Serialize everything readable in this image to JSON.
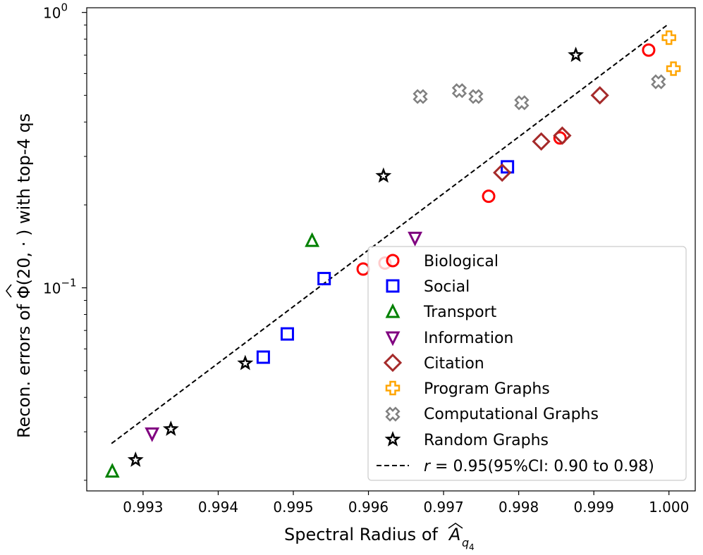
{
  "chart_data": {
    "type": "scatter",
    "xlabel": "Spectral Radius of Â_{q4}",
    "xlabel_main": "Spectral Radius of ",
    "xlabel_symbol": "A",
    "xlabel_sub": "q",
    "xlabel_subsub": "4",
    "ylabel": "Recon. errors of Φ̂(20, ·) with top-4 qs",
    "ylabel_before": "Recon. errors of ",
    "ylabel_symbol": "Φ",
    "ylabel_after": "(20, · ) with top-4 qs",
    "yscale": "log",
    "xlim": [
      0.99225,
      1.00035
    ],
    "ylim": [
      0.0183,
      1.04
    ],
    "x_ticks": [
      0.993,
      0.994,
      0.995,
      0.996,
      0.997,
      0.998,
      0.999,
      1.0
    ],
    "x_tick_labels": [
      "0.993",
      "0.994",
      "0.995",
      "0.996",
      "0.997",
      "0.998",
      "0.999",
      "1.000"
    ],
    "y_major_ticks": [
      {
        "value": 0.1,
        "base": "10",
        "exp": "−1"
      },
      {
        "value": 1.0,
        "base": "10",
        "exp": "0"
      }
    ],
    "y_minor_ticks": [
      0.02,
      0.03,
      0.04,
      0.05,
      0.06,
      0.07,
      0.08,
      0.09,
      0.2,
      0.3,
      0.4,
      0.5,
      0.6,
      0.7,
      0.8,
      0.9
    ],
    "series": [
      {
        "name": "Biological",
        "marker": "circle",
        "color": "#ff0000",
        "points": [
          [
            0.99593,
            0.117
          ],
          [
            0.99622,
            0.123
          ],
          [
            0.9976,
            0.215
          ],
          [
            0.99855,
            0.35
          ],
          [
            0.99973,
            0.73
          ]
        ]
      },
      {
        "name": "Social",
        "marker": "square",
        "color": "#0000ff",
        "points": [
          [
            0.9946,
            0.056
          ],
          [
            0.99492,
            0.068
          ],
          [
            0.99541,
            0.108
          ],
          [
            0.99785,
            0.275
          ]
        ]
      },
      {
        "name": "Transport",
        "marker": "triangle-up",
        "color": "#008000",
        "points": [
          [
            0.99259,
            0.0215
          ],
          [
            0.99525,
            0.148
          ]
        ]
      },
      {
        "name": "Information",
        "marker": "triangle-down",
        "color": "#800080",
        "points": [
          [
            0.99312,
            0.0296
          ],
          [
            0.99662,
            0.152
          ]
        ]
      },
      {
        "name": "Citation",
        "marker": "diamond",
        "color": "#a52a2a",
        "points": [
          [
            0.99778,
            0.262
          ],
          [
            0.9983,
            0.34
          ],
          [
            0.99858,
            0.357
          ],
          [
            0.99908,
            0.5
          ]
        ]
      },
      {
        "name": "Program Graphs",
        "marker": "plus",
        "color": "#ffa500",
        "points": [
          [
            1.0,
            0.81
          ],
          [
            1.00006,
            0.625
          ]
        ]
      },
      {
        "name": "Computational Graphs",
        "marker": "x",
        "color": "#808080",
        "points": [
          [
            0.99669,
            0.495
          ],
          [
            0.99721,
            0.52
          ],
          [
            0.99743,
            0.495
          ],
          [
            0.99804,
            0.47
          ],
          [
            0.99986,
            0.56
          ]
        ]
      },
      {
        "name": "Random Graphs",
        "marker": "star",
        "color": "#000000",
        "points": [
          [
            0.9929,
            0.0237
          ],
          [
            0.99337,
            0.0307
          ],
          [
            0.99436,
            0.0532
          ],
          [
            0.9962,
            0.255
          ],
          [
            0.99876,
            0.7
          ]
        ]
      }
    ],
    "fit_line": {
      "name": "r = 0.95(95%CI: 0.90 to 0.98)",
      "r_text": "r",
      "label_rest": " = 0.95(95%CI: 0.90 to 0.98)",
      "style": "dashed",
      "color": "#000000",
      "x": [
        0.99258,
        1.0
      ],
      "y": [
        0.0272,
        0.91
      ]
    },
    "legend_position": "lower-right"
  }
}
